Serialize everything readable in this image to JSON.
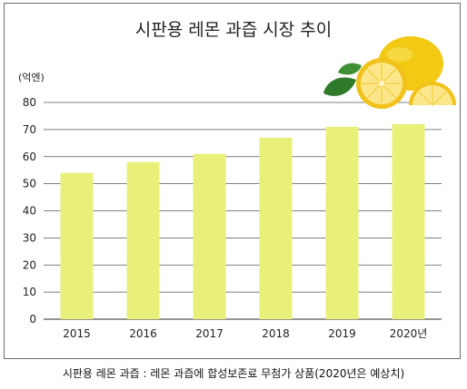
{
  "chart_data": {
    "type": "bar",
    "title": "시판용 레몬 과즙 시장 추이",
    "unit_label": "(억엔)",
    "categories": [
      "2015",
      "2016",
      "2017",
      "2018",
      "2019",
      "2020년"
    ],
    "values": [
      54,
      58,
      61,
      67,
      71,
      72
    ],
    "ylim": [
      0,
      80
    ],
    "yticks": [
      0,
      10,
      20,
      30,
      40,
      50,
      60,
      70,
      80
    ],
    "grid": true,
    "bar_color": "#e8f07a",
    "grid_color": "#555555"
  },
  "footnote": "시판용 레몬 과즙 : 레몬 과즙에 합성보존료 무첨가 상품(2020년은 예상치)",
  "decoration": {
    "image": "lemon-illustration"
  }
}
